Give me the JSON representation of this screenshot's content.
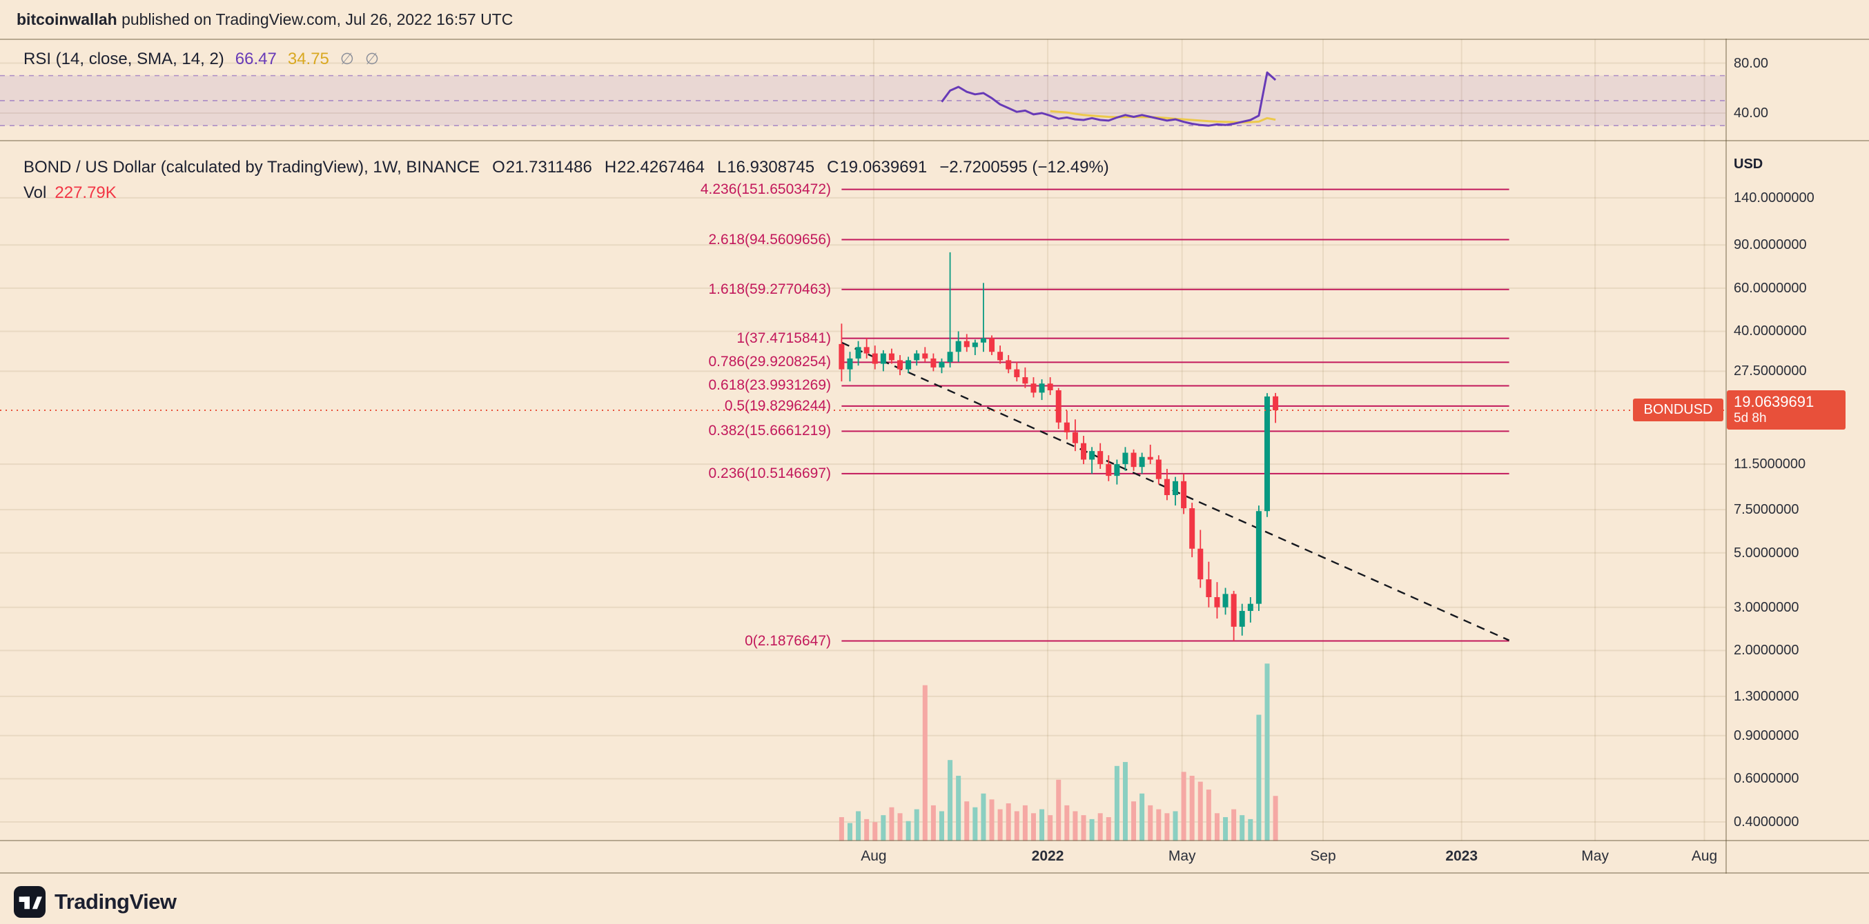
{
  "meta": {
    "topbar_user": "bitcoinwallah",
    "topbar_rest": " published on TradingView.com, Jul 26, 2022 16:57 UTC",
    "brand": "TradingView"
  },
  "colors": {
    "background": "#f8e9d6",
    "grid": "rgba(120,90,40,0.11)",
    "fib": "#c2185b",
    "candle_up": "#089981",
    "candle_down": "#f23645",
    "vol_up": "#8bcfc1",
    "vol_down": "#f5a8a4",
    "rsi_line": "#673ab7",
    "rsi_sma": "#ecc94b",
    "rsi_band": "rgba(103,58,183,0.10)",
    "rsi_dash": "rgba(103,58,183,0.50)",
    "price_badge": "#e8503a",
    "trendline": "#15181f",
    "vol_value": "#f23645"
  },
  "rsi_panel": {
    "legend_title": "RSI (14, close, SMA, 14, 2)",
    "value": "66.47",
    "sma_value": "34.75",
    "empty1": "∅",
    "empty2": "∅"
  },
  "main_panel": {
    "legend": {
      "title": "BOND / US Dollar (calculated by TradingView), 1W, BINANCE",
      "o_label": "O",
      "o_value": "21.7311486",
      "h_label": "H",
      "h_value": "22.4267464",
      "l_label": "L",
      "l_value": "16.9308745",
      "c_label": "C",
      "c_value": "19.0639691",
      "change": "−2.7200595 (−12.49%)",
      "vol_label": "Vol",
      "vol_value": "227.79K"
    },
    "price_axis": {
      "currency": "USD",
      "current": {
        "text": "19.0639691",
        "countdown": "5d 8h",
        "value": 19.0639691
      },
      "symbol_label": "BONDUSD"
    }
  },
  "chart_data": {
    "type": "candlestick",
    "symbol": "BOND/USD",
    "interval": "1W",
    "exchange": "BINANCE",
    "scale": "log",
    "current_price": 19.0639691,
    "price_axis_ticks": [
      {
        "text": "140.0000000",
        "value": 140
      },
      {
        "text": "90.0000000",
        "value": 90
      },
      {
        "text": "60.0000000",
        "value": 60
      },
      {
        "text": "40.0000000",
        "value": 40
      },
      {
        "text": "27.5000000",
        "value": 27.5
      },
      {
        "text": "11.5000000",
        "value": 11.5
      },
      {
        "text": "7.5000000",
        "value": 7.5
      },
      {
        "text": "5.0000000",
        "value": 5
      },
      {
        "text": "3.0000000",
        "value": 3
      },
      {
        "text": "2.0000000",
        "value": 2
      },
      {
        "text": "1.3000000",
        "value": 1.3
      },
      {
        "text": "0.9000000",
        "value": 0.9
      },
      {
        "text": "0.6000000",
        "value": 0.6
      },
      {
        "text": "0.4000000",
        "value": 0.4
      }
    ],
    "rsi_axis_ticks": [
      {
        "text": "80.00",
        "value": 80
      },
      {
        "text": "40.00",
        "value": 40
      }
    ],
    "time_axis": [
      {
        "label": "Aug",
        "index": 3.85,
        "emph": false
      },
      {
        "label": "2022",
        "index": 24.7,
        "emph": true
      },
      {
        "label": "May",
        "index": 40.8,
        "emph": false
      },
      {
        "label": "Sep",
        "index": 57.7,
        "emph": false
      },
      {
        "label": "2023",
        "index": 74.3,
        "emph": true
      },
      {
        "label": "May",
        "index": 90.3,
        "emph": false
      },
      {
        "label": "Aug",
        "index": 103.4,
        "emph": false
      }
    ],
    "fib_levels": [
      {
        "label": "4.236(151.6503472)",
        "price": 151.6503472
      },
      {
        "label": "2.618(94.5609656)",
        "price": 94.5609656
      },
      {
        "label": "1.618(59.2770463)",
        "price": 59.2770463
      },
      {
        "label": "1(37.4715841)",
        "price": 37.4715841
      },
      {
        "label": "0.786(29.9208254)",
        "price": 29.9208254
      },
      {
        "label": "0.618(23.9931269)",
        "price": 23.9931269
      },
      {
        "label": "0.5(19.8296244)",
        "price": 19.8296244
      },
      {
        "label": "0.382(15.6661219)",
        "price": 15.6661219
      },
      {
        "label": "0.236(10.5146697)",
        "price": 10.5146697
      },
      {
        "label": "0(2.1876647)",
        "price": 2.1876647
      }
    ],
    "candles": [
      [
        35.5,
        43,
        25,
        28
      ],
      [
        28,
        33,
        25,
        31
      ],
      [
        31,
        36.5,
        29,
        34.5
      ],
      [
        34.5,
        37.5,
        31,
        32.5
      ],
      [
        32.5,
        35,
        28,
        29.5
      ],
      [
        29.5,
        33.5,
        27.5,
        32.5
      ],
      [
        32.5,
        34,
        29.5,
        30.5
      ],
      [
        30.5,
        32,
        26.5,
        28
      ],
      [
        28,
        31.5,
        27,
        30.5
      ],
      [
        30.5,
        33.5,
        29,
        32.5
      ],
      [
        32.5,
        34.5,
        30,
        31
      ],
      [
        31,
        32.5,
        27.5,
        28.5
      ],
      [
        28.5,
        31,
        27,
        30
      ],
      [
        30,
        84,
        28.5,
        33
      ],
      [
        33,
        40,
        30,
        36.5
      ],
      [
        36.5,
        39,
        33,
        34.5
      ],
      [
        34.5,
        37,
        32,
        36
      ],
      [
        36,
        63,
        33,
        37.5
      ],
      [
        37.5,
        38.5,
        32,
        33
      ],
      [
        33,
        35,
        29.5,
        30.5
      ],
      [
        30.5,
        32,
        27,
        28
      ],
      [
        28,
        30,
        25,
        26
      ],
      [
        26,
        28.5,
        23.5,
        24.5
      ],
      [
        24.5,
        26,
        21.5,
        22.5
      ],
      [
        22.5,
        25.5,
        21,
        24.5
      ],
      [
        24.5,
        26,
        22,
        23
      ],
      [
        23,
        23.5,
        16,
        17
      ],
      [
        17,
        19,
        14.5,
        15.5
      ],
      [
        15.5,
        17.5,
        13,
        14
      ],
      [
        14,
        15,
        11.5,
        12
      ],
      [
        12,
        13.5,
        10.5,
        13
      ],
      [
        13,
        14,
        11,
        11.5
      ],
      [
        11.5,
        12.5,
        9.8,
        10.3
      ],
      [
        10.3,
        12,
        9.5,
        11.5
      ],
      [
        11.5,
        13.5,
        10.8,
        12.8
      ],
      [
        12.8,
        13.2,
        10.8,
        11.2
      ],
      [
        11.2,
        12.8,
        10.5,
        12.3
      ],
      [
        12.3,
        13.8,
        11.5,
        12
      ],
      [
        12,
        12.5,
        9.5,
        10
      ],
      [
        10,
        11,
        8.2,
        8.6
      ],
      [
        8.6,
        10.2,
        7.8,
        9.8
      ],
      [
        9.8,
        10.5,
        7.2,
        7.6
      ],
      [
        7.6,
        8,
        4.8,
        5.2
      ],
      [
        5.2,
        6.2,
        3.6,
        3.9
      ],
      [
        3.9,
        4.6,
        3.0,
        3.3
      ],
      [
        3.3,
        3.8,
        2.7,
        3.0
      ],
      [
        3.0,
        3.6,
        2.8,
        3.4
      ],
      [
        3.4,
        3.5,
        2.19,
        2.5
      ],
      [
        2.5,
        3.1,
        2.3,
        2.9
      ],
      [
        2.9,
        3.3,
        2.6,
        3.1
      ],
      [
        3.1,
        7.8,
        2.9,
        7.4
      ],
      [
        7.4,
        22.4,
        7.0,
        21.7
      ],
      [
        21.7311486,
        22.4267464,
        16.9308745,
        19.0639691
      ]
    ],
    "volumes_k": [
      120,
      90,
      150,
      110,
      95,
      130,
      170,
      140,
      100,
      160,
      790,
      180,
      150,
      410,
      330,
      200,
      170,
      240,
      210,
      160,
      190,
      150,
      180,
      140,
      160,
      130,
      310,
      180,
      150,
      130,
      110,
      140,
      120,
      380,
      400,
      200,
      240,
      180,
      160,
      140,
      150,
      350,
      330,
      300,
      260,
      140,
      120,
      160,
      130,
      110,
      640,
      900,
      227.79
    ],
    "volume_max_k": 900,
    "rsi": {
      "start_index": 12,
      "values": [
        49,
        58,
        61,
        57,
        55,
        56,
        52,
        47,
        44,
        41,
        42,
        39,
        40,
        38,
        35.5,
        36.5,
        35,
        34.5,
        36,
        34.5,
        34,
        36.5,
        38.5,
        37,
        38.5,
        37,
        35.5,
        34,
        35,
        33,
        31.5,
        30.5,
        30,
        31,
        30.5,
        31.5,
        33,
        34.5,
        38,
        72.5,
        66.47
      ]
    },
    "rsi_sma": {
      "start_index": 25,
      "values": [
        41.5,
        41,
        40.5,
        39.5,
        38.5,
        38,
        37.5,
        37,
        36.8,
        36.9,
        37,
        36.8,
        36.9,
        36.5,
        36,
        35.5,
        35,
        34.5,
        34,
        33.5,
        33.2,
        33,
        32.8,
        32.6,
        32.8,
        33.2,
        36,
        34.75
      ]
    },
    "rsi_levels_dashed": [
      70,
      50,
      30
    ],
    "trendline": {
      "from_index": 0,
      "from_price": 36,
      "to_index": 80,
      "to_price": 2.2
    }
  }
}
